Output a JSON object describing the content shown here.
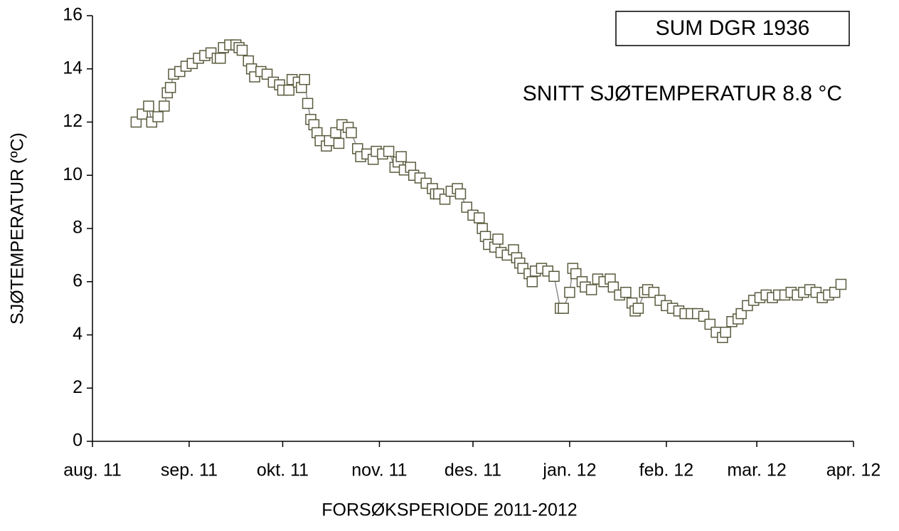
{
  "chart_data": {
    "type": "line",
    "x_label": "FORSØKSPERIODE 2011-2012",
    "y_label": "SJØTEMPERATUR (ºC)",
    "annotations": [
      "SUM DGR 1936",
      "SNITT SJØTEMPERATUR 8.8 °C"
    ],
    "xlim": [
      0,
      244
    ],
    "xticks": [
      {
        "value": 0,
        "label": "aug. 11"
      },
      {
        "value": 31,
        "label": "sep. 11"
      },
      {
        "value": 61,
        "label": "okt. 11"
      },
      {
        "value": 92,
        "label": "nov. 11"
      },
      {
        "value": 122,
        "label": "des. 11"
      },
      {
        "value": 153,
        "label": "jan. 12"
      },
      {
        "value": 184,
        "label": "feb. 12"
      },
      {
        "value": 213,
        "label": "mar. 12"
      },
      {
        "value": 244,
        "label": "apr. 12"
      }
    ],
    "ylim": [
      0,
      16
    ],
    "yticks": [
      0,
      2,
      4,
      6,
      8,
      10,
      12,
      14,
      16
    ],
    "grid": false,
    "series": [
      {
        "color": "#5b5b3f",
        "line_color": "#8c8c8c",
        "x": [
          14,
          16,
          18,
          19,
          21,
          23,
          24,
          25,
          26,
          28,
          30,
          32,
          34,
          36,
          38,
          40,
          41,
          42,
          44,
          46,
          47,
          48,
          50,
          51,
          52,
          54,
          56,
          58,
          60,
          61,
          63,
          64,
          66,
          67,
          68,
          69,
          70,
          71,
          72,
          73,
          75,
          76,
          78,
          79,
          80,
          82,
          83,
          85,
          86,
          88,
          90,
          91,
          93,
          95,
          97,
          98,
          99,
          100,
          102,
          103,
          105,
          107,
          109,
          110,
          111,
          113,
          115,
          117,
          118,
          120,
          122,
          124,
          125,
          126,
          127,
          129,
          130,
          131,
          133,
          135,
          136,
          137,
          138,
          140,
          141,
          142,
          144,
          146,
          148,
          150,
          151,
          153,
          154,
          155,
          157,
          158,
          160,
          162,
          164,
          166,
          167,
          169,
          171,
          173,
          174,
          175,
          177,
          178,
          180,
          182,
          184,
          186,
          188,
          190,
          192,
          194,
          196,
          198,
          200,
          202,
          203,
          205,
          207,
          208,
          210,
          212,
          214,
          216,
          218,
          220,
          222,
          224,
          226,
          228,
          230,
          232,
          234,
          236,
          238,
          240
        ],
        "values": [
          12.0,
          12.3,
          12.6,
          12.0,
          12.2,
          12.6,
          13.1,
          13.3,
          13.8,
          13.9,
          14.1,
          14.2,
          14.4,
          14.5,
          14.6,
          14.4,
          14.4,
          14.8,
          14.9,
          14.9,
          14.8,
          14.7,
          14.3,
          14.0,
          13.7,
          13.9,
          13.8,
          13.5,
          13.4,
          13.2,
          13.2,
          13.6,
          13.5,
          13.3,
          13.6,
          12.7,
          12.1,
          11.9,
          11.6,
          11.3,
          11.1,
          11.3,
          11.6,
          11.2,
          11.9,
          11.8,
          11.6,
          11.0,
          10.7,
          10.8,
          10.6,
          10.9,
          10.8,
          10.9,
          10.3,
          10.5,
          10.7,
          10.2,
          10.3,
          10.0,
          9.9,
          9.7,
          9.5,
          9.3,
          9.3,
          9.1,
          9.4,
          9.5,
          9.3,
          8.8,
          8.5,
          8.4,
          8.0,
          7.7,
          7.4,
          7.3,
          7.6,
          7.1,
          7.0,
          7.2,
          6.9,
          6.7,
          6.5,
          6.3,
          6.0,
          6.4,
          6.5,
          6.4,
          6.2,
          5.0,
          5.0,
          5.6,
          6.5,
          6.3,
          6.0,
          5.8,
          5.7,
          6.1,
          6.0,
          6.1,
          5.8,
          5.5,
          5.6,
          5.2,
          4.9,
          5.0,
          5.6,
          5.7,
          5.6,
          5.3,
          5.1,
          5.0,
          4.9,
          4.8,
          4.8,
          4.8,
          4.7,
          4.4,
          4.1,
          3.9,
          4.1,
          4.5,
          4.6,
          4.8,
          5.1,
          5.3,
          5.4,
          5.5,
          5.4,
          5.5,
          5.5,
          5.6,
          5.5,
          5.6,
          5.7,
          5.6,
          5.4,
          5.5,
          5.6,
          5.9
        ]
      }
    ]
  }
}
